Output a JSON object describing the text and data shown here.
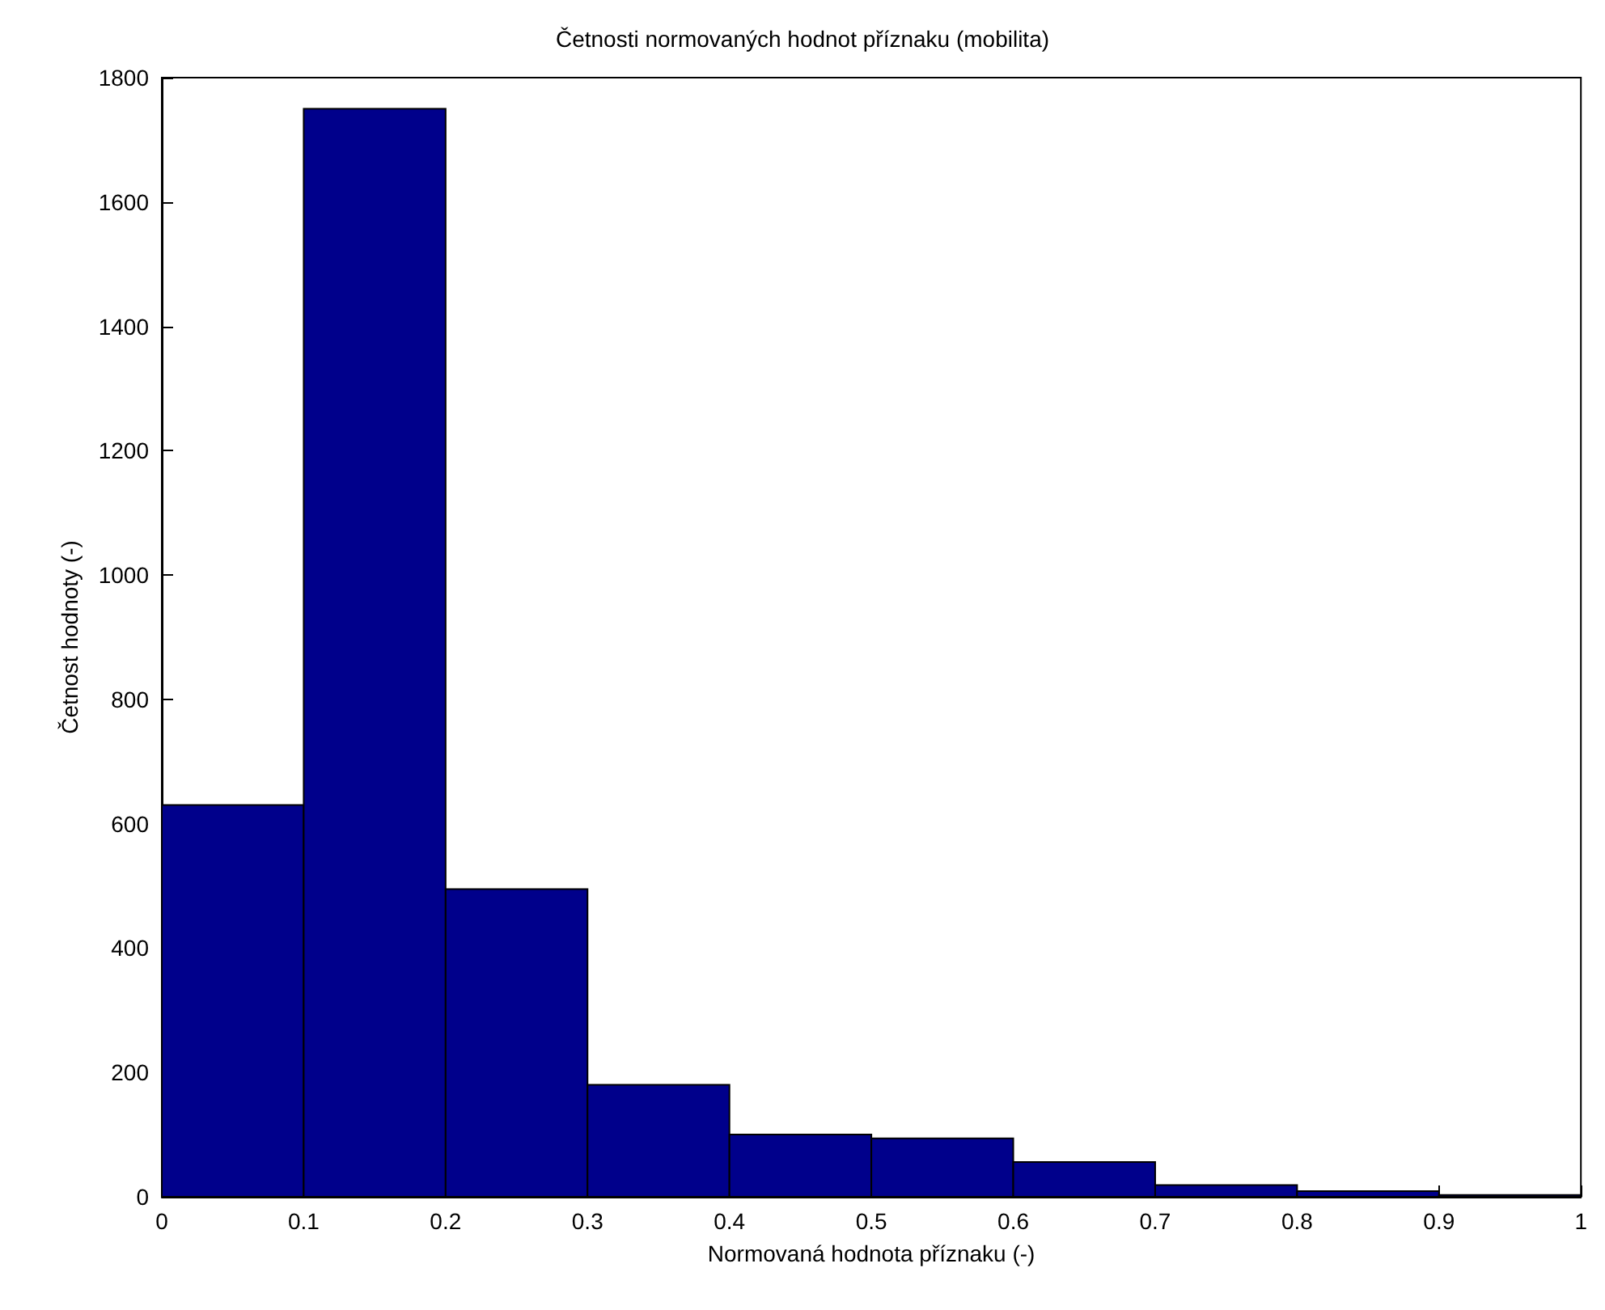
{
  "chart_data": {
    "type": "histogram",
    "title": "Četnosti normovaných hodnot příznaku (mobilita)",
    "xlabel": "Normovaná hodnota příznaku (-)",
    "ylabel": "Četnost hodnoty (-)",
    "bins": [
      0,
      0.1,
      0.2,
      0.3,
      0.4,
      0.5,
      0.6,
      0.7,
      0.8,
      0.9,
      1
    ],
    "values": [
      630,
      1750,
      495,
      180,
      100,
      94,
      56,
      19,
      9,
      3
    ],
    "color": "#00008b",
    "xlim": [
      0,
      1
    ],
    "xticks": [
      0,
      0.1,
      0.2,
      0.3,
      0.4,
      0.5,
      0.6,
      0.7,
      0.8,
      0.9,
      1
    ],
    "ylim": [
      0,
      1800
    ],
    "yticks": [
      0,
      200,
      400,
      600,
      800,
      1000,
      1200,
      1400,
      1600,
      1800
    ],
    "grid": false
  }
}
